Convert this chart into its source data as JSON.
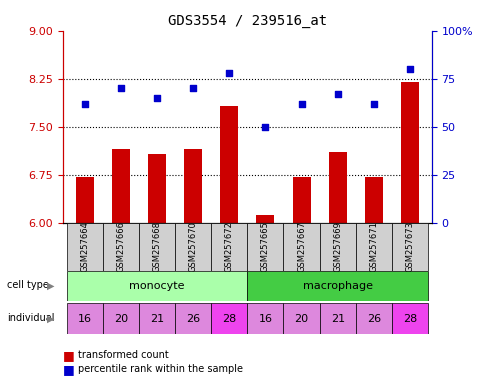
{
  "title": "GDS3554 / 239516_at",
  "samples": [
    "GSM257664",
    "GSM257666",
    "GSM257668",
    "GSM257670",
    "GSM257672",
    "GSM257665",
    "GSM257667",
    "GSM257669",
    "GSM257671",
    "GSM257673"
  ],
  "transformed_counts": [
    6.72,
    7.15,
    7.08,
    7.15,
    7.82,
    6.12,
    6.72,
    7.1,
    6.72,
    8.2
  ],
  "percentile_ranks": [
    62,
    70,
    65,
    70,
    78,
    50,
    62,
    67,
    62,
    80
  ],
  "cell_types": [
    "monocyte",
    "monocyte",
    "monocyte",
    "monocyte",
    "monocyte",
    "macrophage",
    "macrophage",
    "macrophage",
    "macrophage",
    "macrophage"
  ],
  "individuals": [
    "16",
    "20",
    "21",
    "26",
    "28",
    "16",
    "20",
    "21",
    "26",
    "28"
  ],
  "ylim_left": [
    6,
    9
  ],
  "yticks_left": [
    6,
    6.75,
    7.5,
    8.25,
    9
  ],
  "ylim_right": [
    0,
    100
  ],
  "yticks_right": [
    0,
    25,
    50,
    75,
    100
  ],
  "ytick_labels_right": [
    "0",
    "25",
    "50",
    "75",
    "100%"
  ],
  "bar_color": "#cc0000",
  "dot_color": "#0000cc",
  "bar_base": 6,
  "monocyte_color": "#aaffaa",
  "macrophage_color": "#44cc44",
  "individual_color_base": "#dd88dd",
  "individual_color_highlight": "#ee44ee",
  "tick_label_color_left": "#cc0000",
  "tick_label_color_right": "#0000cc",
  "sample_box_color": "#d0d0d0"
}
